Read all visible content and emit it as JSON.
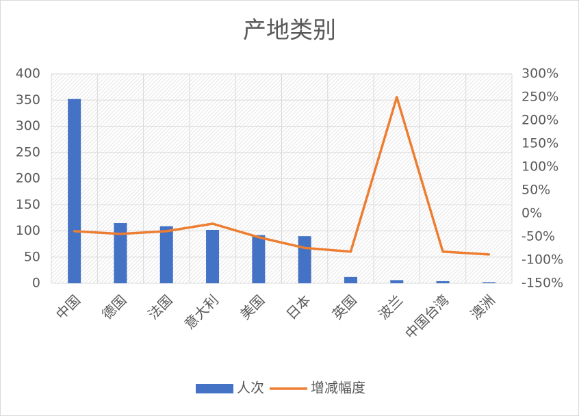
{
  "chart_data": {
    "type": "bar_line",
    "title": "产地类别",
    "categories": [
      "中国",
      "德国",
      "法国",
      "意大利",
      "美国",
      "日本",
      "英国",
      "波兰",
      "中国台湾",
      "澳洲"
    ],
    "series": [
      {
        "name": "人次",
        "type": "bar",
        "color": "#4472c4",
        "values": [
          352,
          115,
          109,
          102,
          92,
          90,
          12,
          6,
          4,
          2
        ]
      },
      {
        "name": "增减幅度",
        "type": "line",
        "axis": "y2",
        "color": "#ed7d31",
        "values": [
          -38,
          -44,
          -38,
          -22,
          -51,
          -74,
          -82,
          250,
          -82,
          -88
        ]
      }
    ],
    "ylim": [
      0,
      400
    ],
    "yticks": [
      0,
      50,
      100,
      150,
      200,
      250,
      300,
      350,
      400
    ],
    "y2lim": [
      -150,
      300
    ],
    "y2ticks": [
      {
        "value": -150,
        "label": "-150%"
      },
      {
        "value": -100,
        "label": "-100%"
      },
      {
        "value": -50,
        "label": "-50%"
      },
      {
        "value": 0,
        "label": "0%"
      },
      {
        "value": 50,
        "label": "50%"
      },
      {
        "value": 100,
        "label": "100%"
      },
      {
        "value": 150,
        "label": "150%"
      },
      {
        "value": 200,
        "label": "200%"
      },
      {
        "value": 250,
        "label": "250%"
      },
      {
        "value": 300,
        "label": "300%"
      }
    ],
    "grid": true,
    "legend": "bottom"
  }
}
